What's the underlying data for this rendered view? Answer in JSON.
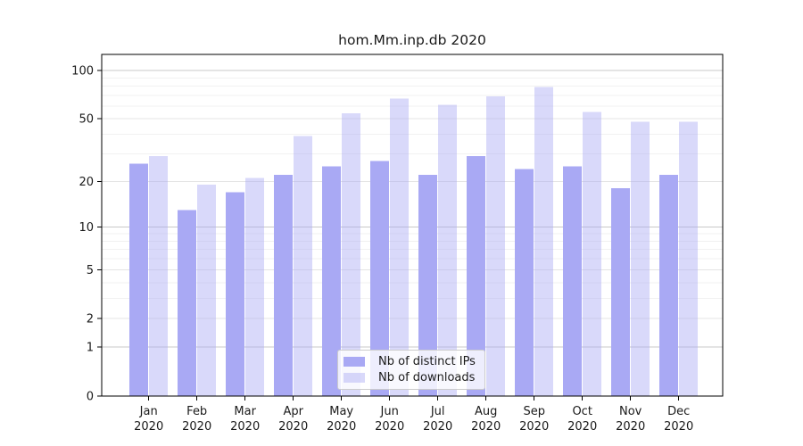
{
  "title": "hom.Mm.inp.db 2020",
  "legend": {
    "items": [
      {
        "label": "Nb of distinct IPs",
        "series": "distinct_ips"
      },
      {
        "label": "Nb of downloads",
        "series": "downloads"
      }
    ]
  },
  "colors": {
    "distinct_ips": "#a9a9f4",
    "downloads_fill": "rgba(169,169,244,0.44)",
    "grid_decade": "#c9c9c9",
    "grid_mid": "#e4e4e4",
    "grid_minor": "#f1f1f1",
    "axis": "#000000",
    "text": "#1a1a1a"
  },
  "chart_data": {
    "type": "bar",
    "title": "hom.Mm.inp.db 2020",
    "xlabel": "",
    "ylabel": "",
    "y_scale": "log1p",
    "ylim": [
      0,
      126
    ],
    "grid": true,
    "legend_position": "lower center inside",
    "categories": [
      "Jan 2020",
      "Feb 2020",
      "Mar 2020",
      "Apr 2020",
      "May 2020",
      "Jun 2020",
      "Jul 2020",
      "Aug 2020",
      "Sep 2020",
      "Oct 2020",
      "Nov 2020",
      "Dec 2020"
    ],
    "series": [
      {
        "name": "Nb of distinct IPs",
        "values": [
          26,
          13,
          17,
          22,
          25,
          27,
          22,
          29,
          24,
          25,
          18,
          22
        ]
      },
      {
        "name": "Nb of downloads",
        "values": [
          29,
          19,
          21,
          39,
          54,
          67,
          61,
          69,
          79,
          55,
          48,
          48
        ]
      }
    ],
    "y_ticks_labeled": [
      0,
      1,
      2,
      5,
      10,
      20,
      50,
      100
    ],
    "y_ticks_decade": [
      1,
      10,
      100
    ],
    "y_ticks_mid": [
      2,
      5,
      20,
      50
    ],
    "y_ticks_minor": [
      3,
      4,
      6,
      7,
      8,
      9,
      30,
      40,
      60,
      70,
      80,
      90
    ]
  }
}
